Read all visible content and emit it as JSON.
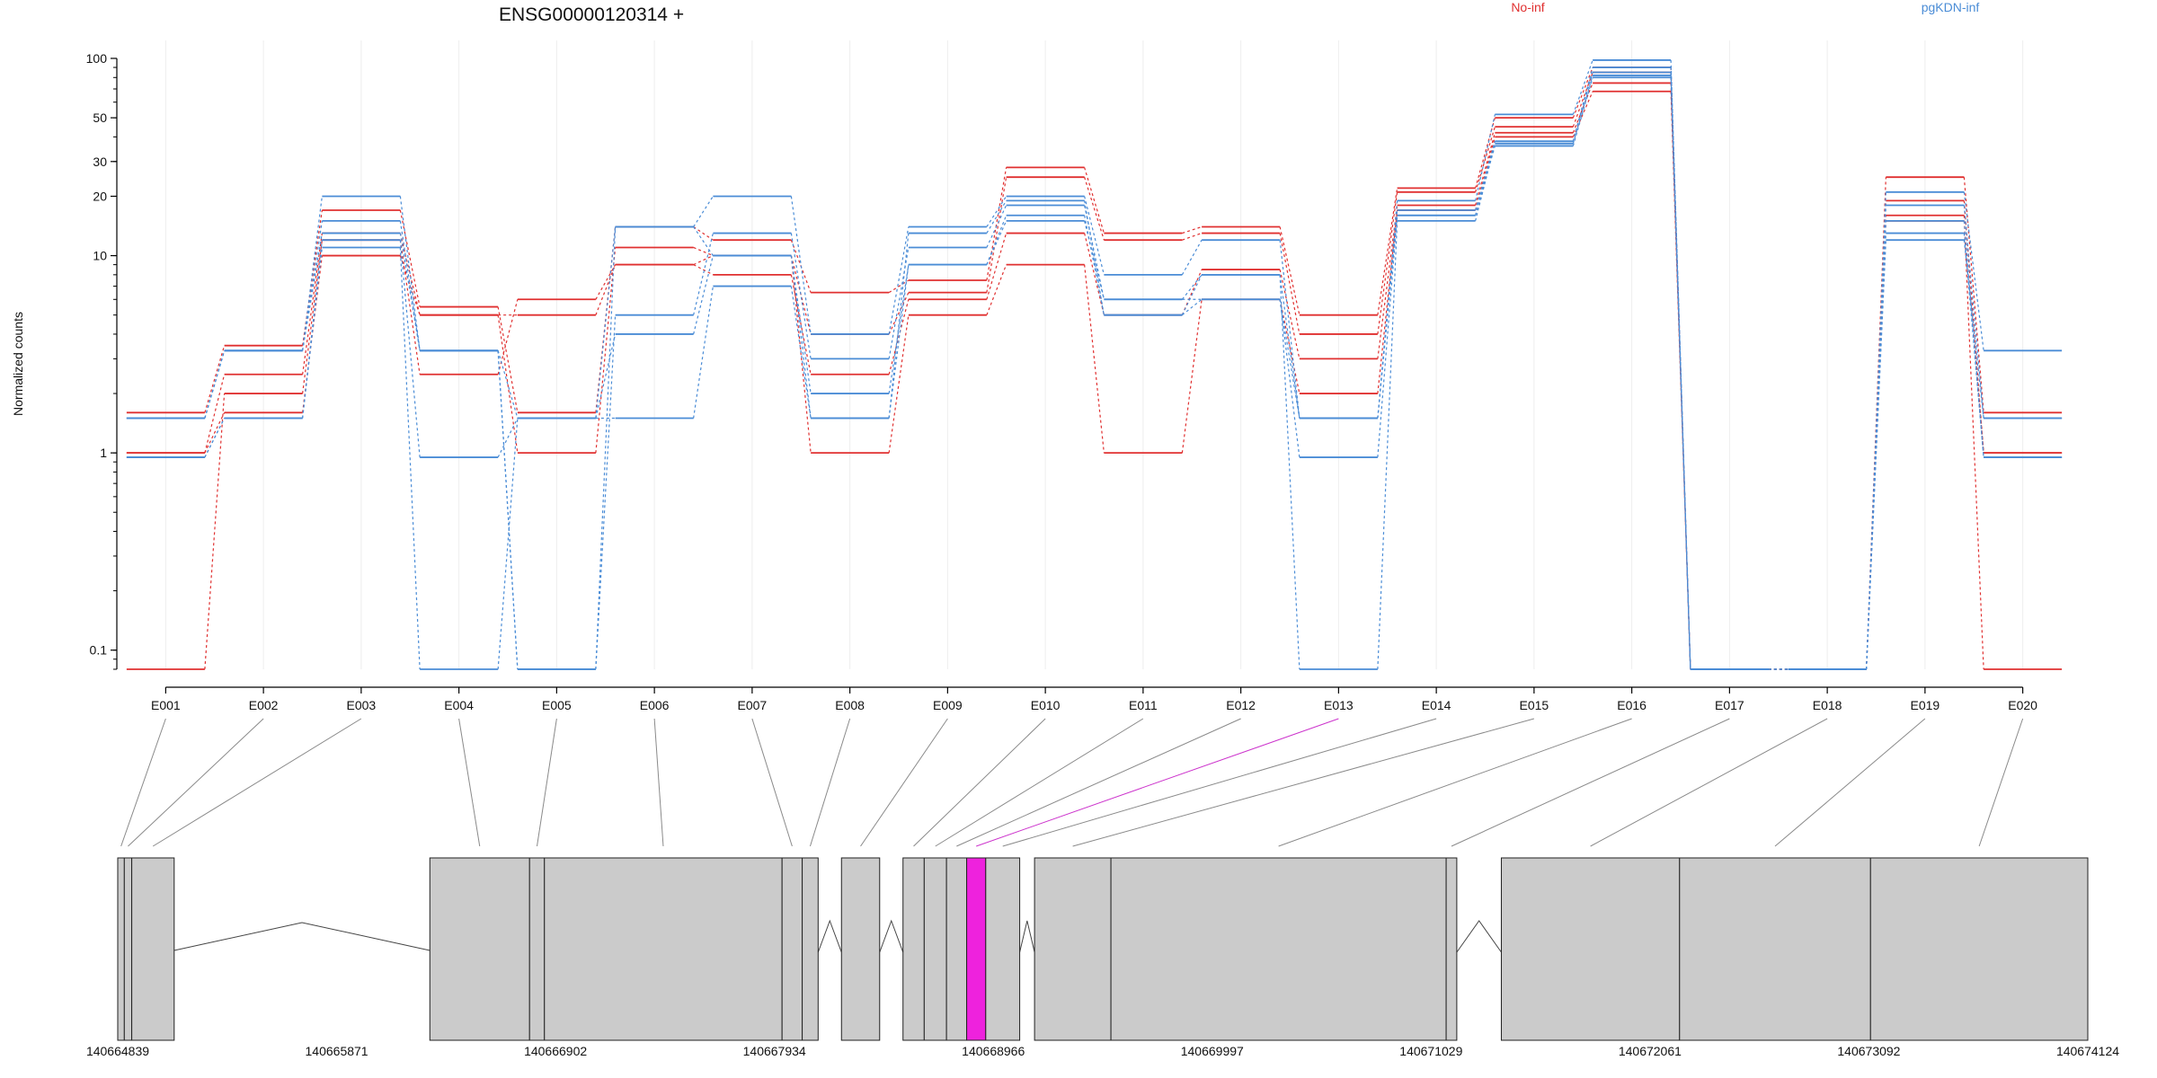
{
  "chart_data": {
    "type": "line",
    "title": "ENSG00000120314 +",
    "ylabel": "Normalized counts",
    "xlabel": "",
    "y_scale": "log",
    "ylim": [
      0.08,
      100
    ],
    "yticks": [
      0.1,
      1,
      10,
      20,
      30,
      50,
      100
    ],
    "grid": true,
    "legend": [
      {
        "name": "No-inf",
        "color": "#e03030",
        "position": "top-right"
      },
      {
        "name": "pgKDN-inf",
        "color": "#4a8cd6",
        "position": "top-right"
      }
    ],
    "categories": [
      "E001",
      "E002",
      "E003",
      "E004",
      "E005",
      "E006",
      "E007",
      "E008",
      "E009",
      "E010",
      "E011",
      "E012",
      "E013",
      "E014",
      "E015",
      "E016",
      "E017",
      "E018",
      "E019",
      "E020"
    ],
    "series": [
      {
        "group": "No-inf",
        "color": "#e03030",
        "values": [
          1.6,
          3.5,
          17,
          5.5,
          1.6,
          14,
          12,
          6.5,
          7.5,
          28,
          13,
          14,
          5,
          22,
          50,
          90,
          0.08,
          0.08,
          25,
          1.6
        ]
      },
      {
        "group": "No-inf",
        "color": "#e03030",
        "values": [
          1.0,
          2.5,
          13,
          5.0,
          1.0,
          11,
          10,
          4.0,
          6.5,
          25,
          12,
          13,
          4.0,
          21,
          45,
          85,
          0.08,
          0.08,
          19,
          1.0
        ]
      },
      {
        "group": "No-inf",
        "color": "#e03030",
        "values": [
          0.08,
          2.0,
          12,
          2.5,
          6.0,
          9,
          8,
          2.5,
          6.0,
          13,
          5.0,
          8.5,
          3.0,
          18,
          42,
          75,
          0.08,
          0.08,
          16,
          0.08
        ]
      },
      {
        "group": "No-inf",
        "color": "#e03030",
        "values": [
          1.0,
          1.6,
          10,
          5.0,
          5.0,
          9,
          10,
          1.0,
          5.0,
          9,
          1.0,
          6.0,
          2.0,
          17,
          40,
          68,
          0.08,
          0.08,
          15,
          1.0
        ]
      },
      {
        "group": "pgKDN-inf",
        "color": "#4a8cd6",
        "values": [
          1.5,
          3.3,
          20,
          3.3,
          0.08,
          14,
          20,
          4.0,
          14,
          20,
          8.0,
          12,
          1.5,
          19,
          52,
          98,
          0.08,
          0.08,
          21,
          3.3
        ]
      },
      {
        "group": "pgKDN-inf",
        "color": "#4a8cd6",
        "values": [
          1.5,
          3.3,
          15,
          3.3,
          0.08,
          5.0,
          13,
          3.0,
          11,
          18,
          6.0,
          8.0,
          1.5,
          17,
          38,
          90,
          0.08,
          0.08,
          18,
          1.5
        ]
      },
      {
        "group": "pgKDN-inf",
        "color": "#4a8cd6",
        "values": [
          0.95,
          1.5,
          12,
          0.95,
          1.5,
          4.0,
          10,
          2.0,
          9.0,
          16,
          5.0,
          6.0,
          0.95,
          16,
          36,
          80,
          0.08,
          0.08,
          15,
          0.95
        ]
      },
      {
        "group": "pgKDN-inf",
        "color": "#4a8cd6",
        "values": [
          0.95,
          1.5,
          11,
          0.08,
          1.5,
          1.5,
          7.0,
          1.5,
          13,
          19,
          5.0,
          8.0,
          0.08,
          15,
          37,
          82,
          0.08,
          0.08,
          13,
          0.95
        ]
      },
      {
        "group": "pgKDN-inf",
        "color": "#4a8cd6",
        "values": [
          1.5,
          3.3,
          13,
          3.3,
          1.5,
          14,
          10,
          1.5,
          9.0,
          15,
          6.0,
          6.0,
          1.5,
          16,
          38,
          85,
          0.08,
          0.08,
          12,
          1.5
        ]
      }
    ],
    "highlighted_exon": "E013",
    "gene_model": {
      "coordinate_ticks": [
        "140664839",
        "140665871",
        "140666902",
        "140667934",
        "140668966",
        "140669997",
        "140671029",
        "140672061",
        "140673092",
        "140674124"
      ],
      "coord_range": [
        140664839,
        140674124
      ],
      "exons": [
        {
          "id": "E001",
          "start": 140664839,
          "end": 140664870
        },
        {
          "id": "E002",
          "start": 140664870,
          "end": 140664905
        },
        {
          "id": "E003",
          "start": 140664905,
          "end": 140665105
        },
        {
          "id": "E004",
          "start": 140666310,
          "end": 140666780
        },
        {
          "id": "E005",
          "start": 140666780,
          "end": 140666850
        },
        {
          "id": "E006",
          "start": 140666850,
          "end": 140667970
        },
        {
          "id": "E007",
          "start": 140667970,
          "end": 140668065
        },
        {
          "id": "E008",
          "start": 140668065,
          "end": 140668140
        },
        {
          "id": "E009",
          "start": 140668250,
          "end": 140668430
        },
        {
          "id": "E010",
          "start": 140668540,
          "end": 140668640
        },
        {
          "id": "E011",
          "start": 140668640,
          "end": 140668745
        },
        {
          "id": "E012",
          "start": 140668745,
          "end": 140668840
        },
        {
          "id": "E013",
          "start": 140668840,
          "end": 140668930
        },
        {
          "id": "E014",
          "start": 140668930,
          "end": 140669090
        },
        {
          "id": "E015",
          "start": 140669160,
          "end": 140669520
        },
        {
          "id": "E016",
          "start": 140669520,
          "end": 140671100
        },
        {
          "id": "E017",
          "start": 140671100,
          "end": 140671150
        },
        {
          "id": "E018",
          "start": 140671360,
          "end": 140672200
        },
        {
          "id": "E019",
          "start": 140672200,
          "end": 140673100
        },
        {
          "id": "E020",
          "start": 140673100,
          "end": 140674124
        }
      ]
    }
  }
}
